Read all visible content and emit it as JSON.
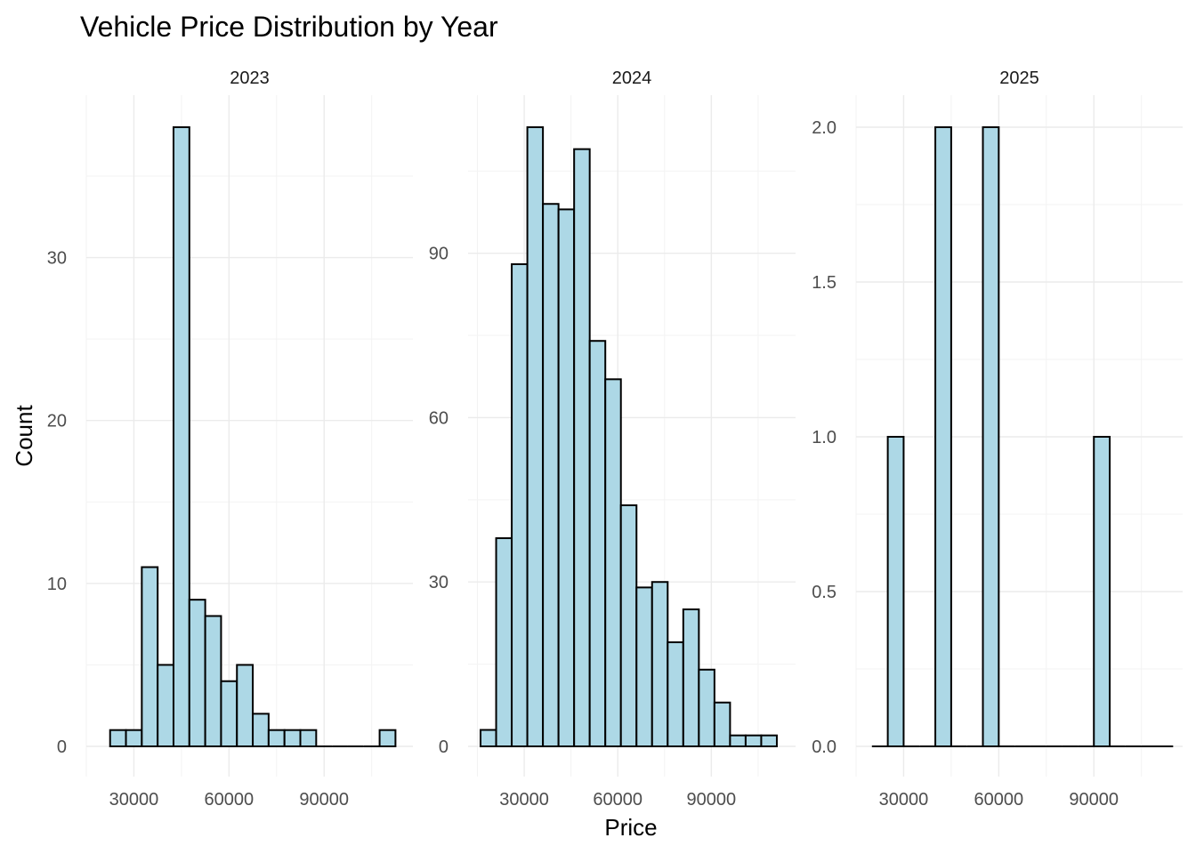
{
  "chart_data": {
    "type": "bar",
    "title": "Vehicle Price Distribution by Year",
    "xlabel": "Price",
    "ylabel": "Count",
    "bar_fill": "#add8e6",
    "bar_outline": "#000000",
    "grid": true,
    "facets": [
      {
        "label": "2023",
        "xlim": [
          15000,
          118000
        ],
        "ylim": [
          0,
          40
        ],
        "x_ticks": [
          30000,
          60000,
          90000
        ],
        "x_tick_labels": [
          "30000",
          "60000",
          "90000"
        ],
        "y_ticks": [
          0,
          10,
          20,
          30
        ],
        "y_tick_labels": [
          "0",
          "10",
          "20",
          "30"
        ],
        "bins": [
          {
            "x": 22500,
            "x_end": 27500,
            "count": 1
          },
          {
            "x": 27500,
            "x_end": 32500,
            "count": 1
          },
          {
            "x": 32500,
            "x_end": 37500,
            "count": 11
          },
          {
            "x": 37500,
            "x_end": 42500,
            "count": 5
          },
          {
            "x": 42500,
            "x_end": 47500,
            "count": 38
          },
          {
            "x": 47500,
            "x_end": 52500,
            "count": 9
          },
          {
            "x": 52500,
            "x_end": 57500,
            "count": 8
          },
          {
            "x": 57500,
            "x_end": 62500,
            "count": 4
          },
          {
            "x": 62500,
            "x_end": 67500,
            "count": 5
          },
          {
            "x": 67500,
            "x_end": 72500,
            "count": 2
          },
          {
            "x": 72500,
            "x_end": 77500,
            "count": 1
          },
          {
            "x": 77500,
            "x_end": 82500,
            "count": 1
          },
          {
            "x": 82500,
            "x_end": 87500,
            "count": 1
          },
          {
            "x": 87500,
            "x_end": 92500,
            "count": 0
          },
          {
            "x": 92500,
            "x_end": 97500,
            "count": 0
          },
          {
            "x": 97500,
            "x_end": 102500,
            "count": 0
          },
          {
            "x": 102500,
            "x_end": 107500,
            "count": 0
          },
          {
            "x": 107500,
            "x_end": 112500,
            "count": 1
          }
        ]
      },
      {
        "label": "2024",
        "xlim": [
          12000,
          117000
        ],
        "ylim": [
          0,
          116
        ],
        "x_ticks": [
          30000,
          60000,
          90000
        ],
        "x_tick_labels": [
          "30000",
          "60000",
          "90000"
        ],
        "y_ticks": [
          0,
          30,
          60,
          90
        ],
        "y_tick_labels": [
          "0",
          "30",
          "60",
          "90"
        ],
        "bins": [
          {
            "x": 16000,
            "x_end": 21000,
            "count": 3
          },
          {
            "x": 21000,
            "x_end": 26000,
            "count": 38
          },
          {
            "x": 26000,
            "x_end": 31000,
            "count": 88
          },
          {
            "x": 31000,
            "x_end": 36000,
            "count": 113
          },
          {
            "x": 36000,
            "x_end": 41000,
            "count": 99
          },
          {
            "x": 41000,
            "x_end": 46000,
            "count": 98
          },
          {
            "x": 46000,
            "x_end": 51000,
            "count": 109
          },
          {
            "x": 51000,
            "x_end": 56000,
            "count": 74
          },
          {
            "x": 56000,
            "x_end": 61000,
            "count": 67
          },
          {
            "x": 61000,
            "x_end": 66000,
            "count": 44
          },
          {
            "x": 66000,
            "x_end": 71000,
            "count": 29
          },
          {
            "x": 71000,
            "x_end": 76000,
            "count": 30
          },
          {
            "x": 76000,
            "x_end": 81000,
            "count": 19
          },
          {
            "x": 81000,
            "x_end": 86000,
            "count": 25
          },
          {
            "x": 86000,
            "x_end": 91000,
            "count": 14
          },
          {
            "x": 91000,
            "x_end": 96000,
            "count": 8
          },
          {
            "x": 96000,
            "x_end": 101000,
            "count": 2
          },
          {
            "x": 101000,
            "x_end": 106000,
            "count": 2
          },
          {
            "x": 106000,
            "x_end": 111000,
            "count": 2
          }
        ]
      },
      {
        "label": "2025",
        "xlim": [
          15000,
          118000
        ],
        "ylim": [
          0,
          2.1
        ],
        "x_ticks": [
          30000,
          60000,
          90000
        ],
        "x_tick_labels": [
          "30000",
          "60000",
          "90000"
        ],
        "y_ticks": [
          0,
          0.5,
          1,
          1.5,
          2
        ],
        "y_tick_labels": [
          "0.0",
          "0.5",
          "1.0",
          "1.5",
          "2.0"
        ],
        "bins": [
          {
            "x": 20000,
            "x_end": 25000,
            "count": 0
          },
          {
            "x": 25000,
            "x_end": 30000,
            "count": 1
          },
          {
            "x": 30000,
            "x_end": 35000,
            "count": 0
          },
          {
            "x": 35000,
            "x_end": 40000,
            "count": 0
          },
          {
            "x": 40000,
            "x_end": 45000,
            "count": 2
          },
          {
            "x": 45000,
            "x_end": 50000,
            "count": 0
          },
          {
            "x": 50000,
            "x_end": 55000,
            "count": 0
          },
          {
            "x": 55000,
            "x_end": 60000,
            "count": 2
          },
          {
            "x": 60000,
            "x_end": 65000,
            "count": 0
          },
          {
            "x": 65000,
            "x_end": 70000,
            "count": 0
          },
          {
            "x": 70000,
            "x_end": 75000,
            "count": 0
          },
          {
            "x": 75000,
            "x_end": 80000,
            "count": 0
          },
          {
            "x": 80000,
            "x_end": 85000,
            "count": 0
          },
          {
            "x": 85000,
            "x_end": 90000,
            "count": 0
          },
          {
            "x": 90000,
            "x_end": 95000,
            "count": 1
          },
          {
            "x": 95000,
            "x_end": 100000,
            "count": 0
          },
          {
            "x": 100000,
            "x_end": 105000,
            "count": 0
          },
          {
            "x": 105000,
            "x_end": 110000,
            "count": 0
          },
          {
            "x": 110000,
            "x_end": 115000,
            "count": 0
          }
        ]
      }
    ]
  }
}
